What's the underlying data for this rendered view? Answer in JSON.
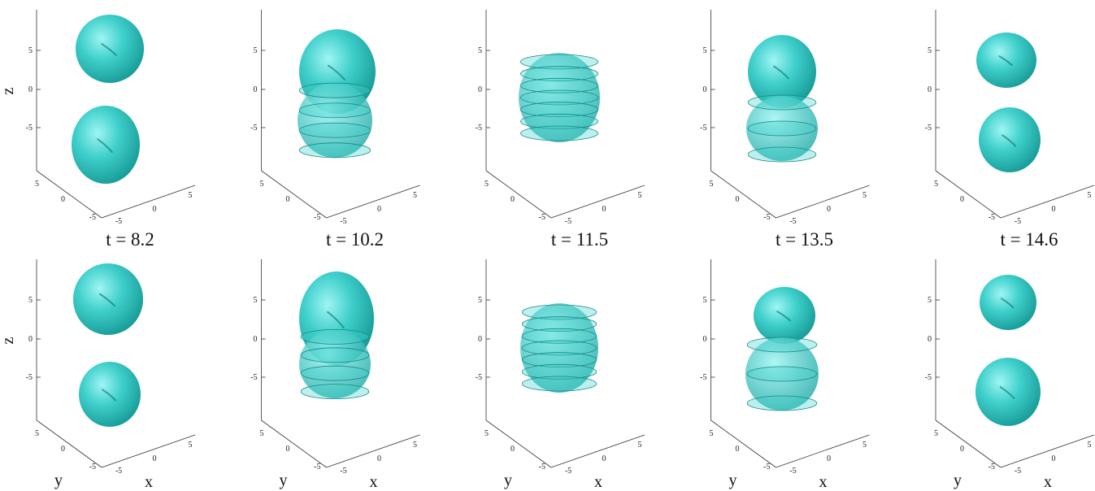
{
  "time_labels": [
    "t = 8.2",
    "t = 10.2",
    "t = 11.5",
    "t = 13.5",
    "t = 14.6"
  ],
  "panels": [
    {
      "z_label": "z",
      "z_ticks": [
        "5",
        "0",
        "-5"
      ],
      "y_ticks": [
        "5",
        "0",
        "-5"
      ],
      "x_ticks": [
        "-5",
        "0",
        "5"
      ]
    },
    {
      "z_ticks": [
        "5",
        "0",
        "-5"
      ],
      "y_ticks": [
        "5",
        "0",
        "-5"
      ],
      "x_ticks": [
        "-5",
        "0",
        "5"
      ]
    },
    {
      "z_ticks": [
        "5",
        "0",
        "-5"
      ],
      "y_ticks": [
        "5",
        "0",
        "-5"
      ],
      "x_ticks": [
        "-5",
        "0",
        "5"
      ]
    },
    {
      "z_ticks": [
        "5",
        "0",
        "-5"
      ],
      "y_ticks": [
        "5",
        "0",
        "-5"
      ],
      "x_ticks": [
        "-5",
        "0",
        "5"
      ]
    },
    {
      "z_ticks": [
        "5",
        "0",
        "-5"
      ],
      "y_ticks": [
        "5",
        "0",
        "-5"
      ],
      "x_ticks": [
        "-5",
        "0",
        "5"
      ]
    },
    {
      "z_label": "z",
      "y_label": "y",
      "x_label": "x",
      "z_ticks": [
        "5",
        "0",
        "-5"
      ],
      "y_ticks": [
        "5",
        "0",
        "-5"
      ],
      "x_ticks": [
        "-5",
        "0",
        "5"
      ]
    },
    {
      "y_label": "y",
      "x_label": "x",
      "z_ticks": [
        "5",
        "0",
        "-5"
      ],
      "y_ticks": [
        "5",
        "0",
        "-5"
      ],
      "x_ticks": [
        "-5",
        "0",
        "5"
      ]
    },
    {
      "y_label": "y",
      "x_label": "x",
      "z_ticks": [
        "5",
        "0",
        "-5"
      ],
      "y_ticks": [
        "5",
        "0",
        "-5"
      ],
      "x_ticks": [
        "-5",
        "0",
        "5"
      ]
    },
    {
      "y_label": "y",
      "x_label": "x",
      "z_ticks": [
        "5",
        "0",
        "-5"
      ],
      "y_ticks": [
        "5",
        "0",
        "-5"
      ],
      "x_ticks": [
        "-5",
        "0",
        "5"
      ]
    },
    {
      "y_label": "y",
      "x_label": "x",
      "z_ticks": [
        "5",
        "0",
        "-5"
      ],
      "y_ticks": [
        "5",
        "0",
        "-5"
      ],
      "x_ticks": [
        "-5",
        "0",
        "5"
      ]
    }
  ]
}
